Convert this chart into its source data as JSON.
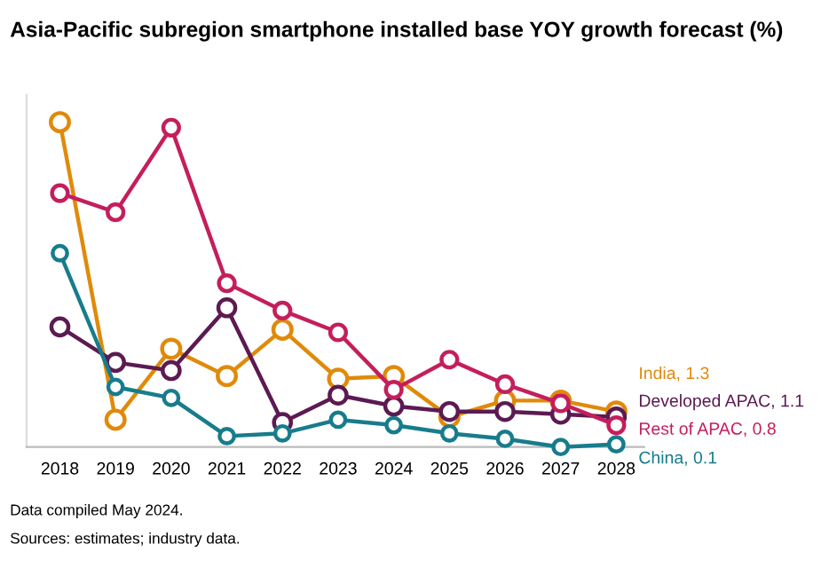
{
  "chart_data": {
    "type": "line",
    "title": "Asia-Pacific subregion smartphone installed base YOY growth forecast (%)",
    "categories": [
      "2018",
      "2019",
      "2020",
      "2021",
      "2022",
      "2023",
      "2024",
      "2025",
      "2026",
      "2027",
      "2028"
    ],
    "ylim": [
      0,
      12.9
    ],
    "marker": "circle",
    "line_style": "solid",
    "grid": false,
    "legend": false,
    "series": [
      {
        "color": "#e08a0b",
        "values": [
          11.9,
          1.0,
          3.6,
          2.6,
          4.3,
          2.5,
          2.6,
          1.1,
          1.7,
          1.7,
          1.3
        ],
        "value_labels": [
          null,
          null,
          null,
          null,
          null,
          null,
          null,
          null,
          null,
          null,
          "India, 1.3"
        ]
      },
      {
        "color": "#5c1a52",
        "values": [
          4.4,
          3.1,
          2.8,
          5.1,
          0.9,
          1.9,
          1.5,
          1.3,
          1.3,
          1.2,
          1.1
        ],
        "value_labels": [
          null,
          null,
          null,
          null,
          null,
          null,
          null,
          null,
          null,
          null,
          "Developed APAC, 1.1"
        ]
      },
      {
        "color": "#c41e5c",
        "values": [
          9.3,
          8.6,
          11.7,
          6.0,
          5.0,
          4.2,
          2.1,
          3.2,
          2.3,
          1.6,
          0.8
        ],
        "value_labels": [
          null,
          null,
          null,
          null,
          null,
          null,
          null,
          null,
          null,
          null,
          "Rest of APAC, 0.8"
        ]
      },
      {
        "color": "#177c8c",
        "values": [
          7.1,
          2.2,
          1.8,
          0.4,
          0.5,
          1.0,
          0.8,
          0.5,
          0.3,
          0.0,
          0.1
        ],
        "value_labels": [
          null,
          null,
          null,
          null,
          null,
          null,
          null,
          null,
          null,
          null,
          "China, 0.1"
        ]
      }
    ],
    "annotations": [
      "Data compiled May 2024.",
      "Sources: estimates; industry data."
    ]
  }
}
